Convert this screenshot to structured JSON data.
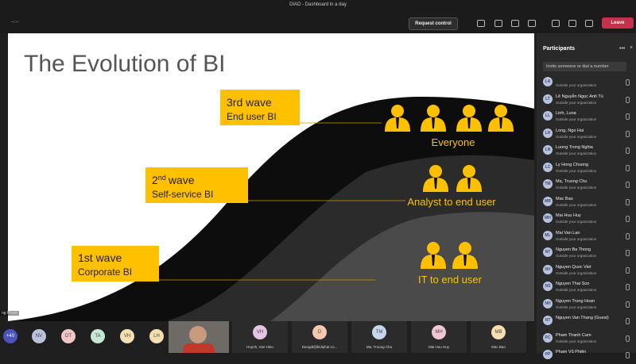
{
  "titlebar": {
    "title": "DIAD - Dashboard in a day",
    "timer": "--:--"
  },
  "toolbar": {
    "request_control": "Request control",
    "leave": "Leave"
  },
  "slide": {
    "title": "The Evolution of BI",
    "waves": [
      {
        "heading": "3rd wave",
        "subtitle": "End user BI",
        "audience": "Everyone"
      },
      {
        "heading_number": "2",
        "heading_suffix": "nd",
        "heading_word": "wave",
        "subtitle": "Self-service BI",
        "audience": "Analyst to end user"
      },
      {
        "heading": "1st wave",
        "subtitle": "Corporate BI",
        "audience": "IT to end user"
      }
    ],
    "presenter_label": "ng Pham"
  },
  "panel": {
    "title": "Participants",
    "invite": "Invite someone or dial a number",
    "participants": [
      {
        "initials": "LA",
        "name": "",
        "status": "Outside your organization"
      },
      {
        "initials": "LT",
        "name": "Lê Nguyễn Ngọc Anh Tú",
        "status": "Outside your organization"
      },
      {
        "initials": "LL",
        "name": "Linh, Luna",
        "status": "Outside your organization"
      },
      {
        "initials": "LH",
        "name": "Long, Ngo Hai",
        "status": "Outside your organization"
      },
      {
        "initials": "LN",
        "name": "Luong Trong Nghia",
        "status": "Outside your organization"
      },
      {
        "initials": "LC",
        "name": "Ly Hong Chuong",
        "status": "Outside your organization"
      },
      {
        "initials": "TM",
        "name": "Ma, Truong Chu",
        "status": "Outside your organization"
      },
      {
        "initials": "MB",
        "name": "Mac Bao",
        "status": "Outside your organization"
      },
      {
        "initials": "MH",
        "name": "Mai Huu Huy",
        "status": "Outside your organization"
      },
      {
        "initials": "ML",
        "name": "Mai Van Lan",
        "status": "Outside your organization"
      },
      {
        "initials": "NT",
        "name": "Nguyen Ba Thong",
        "status": "Outside your organization"
      },
      {
        "initials": "NV",
        "name": "Nguyen Quoc Viet",
        "status": "Outside your organization"
      },
      {
        "initials": "NS",
        "name": "Nguyen Thai Son",
        "status": "Outside your organization"
      },
      {
        "initials": "NH",
        "name": "Nguyen Trung Hoan",
        "status": "Outside your organization"
      },
      {
        "initials": "NT",
        "name": "Nguyen Van Thang (Guest)",
        "status": ""
      },
      {
        "initials": "PC",
        "name": "Pham Thanh Cam",
        "status": "Outside your organization"
      },
      {
        "initials": "PP",
        "name": "Pham Vũ Phiên",
        "status": ""
      }
    ]
  },
  "strip": {
    "more": "+40",
    "avatars": [
      "NV",
      "DT",
      "TA",
      "VH",
      "LH"
    ],
    "tiles": [
      {
        "initials": "VH",
        "name": "Huynh, Van Hieu"
      },
      {
        "initials": "D",
        "name": "Dungdt@bidiphar.co..."
      },
      {
        "initials": "TM",
        "name": "Ma, Truong Chu"
      },
      {
        "initials": "MH",
        "name": "Mai Huu Huy"
      },
      {
        "initials": "MB",
        "name": "Mac Bao"
      }
    ]
  }
}
